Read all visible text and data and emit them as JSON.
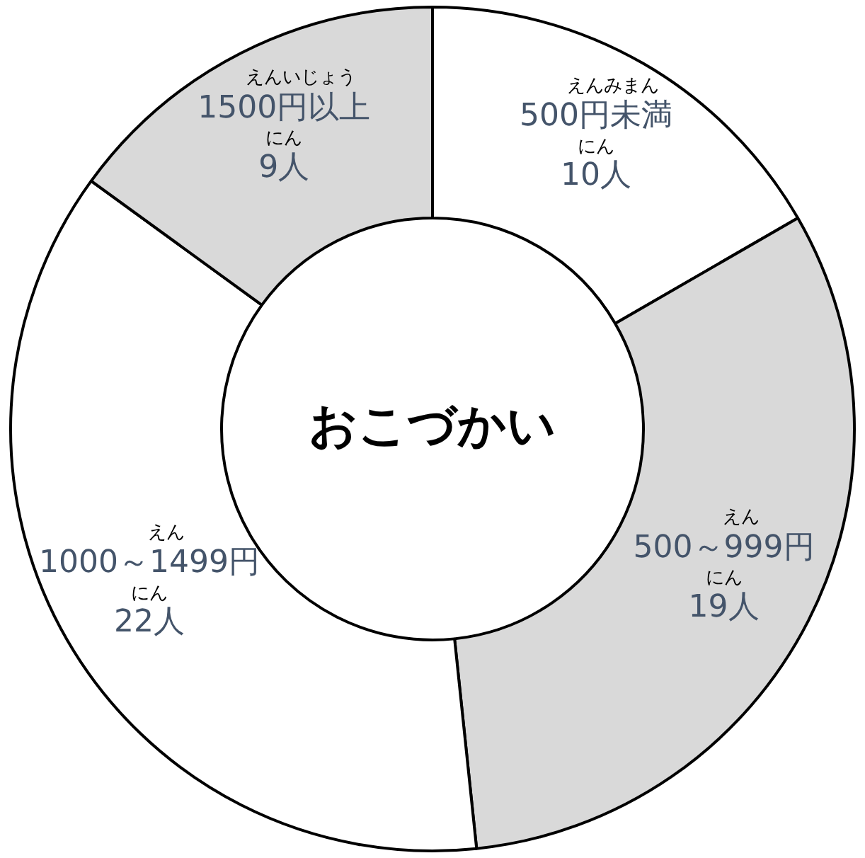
{
  "chart_data": {
    "type": "donut",
    "title": "おこづかい",
    "categories": [
      "500円未満",
      "500～999円",
      "1000～1499円",
      "1500円以上"
    ],
    "values": [
      10,
      19,
      22,
      9
    ],
    "value_labels": [
      "10人",
      "19人",
      "22人",
      "9人"
    ],
    "colors": [
      "#ffffff",
      "#d9d9d9",
      "#ffffff",
      "#d9d9d9"
    ],
    "annotations": [
      {
        "text": "えんみまん",
        "x": "500円未満"
      },
      {
        "text": "にん",
        "x": "500円未満"
      },
      {
        "text": "えん",
        "x": "500～999円"
      },
      {
        "text": "にん",
        "x": "500～999円"
      },
      {
        "text": "えん",
        "x": "1000～1499円"
      },
      {
        "text": "にん",
        "x": "1000～1499円"
      },
      {
        "text": "えんいじょう",
        "x": "1500円以上"
      },
      {
        "text": "にん",
        "x": "1500円以上"
      }
    ],
    "legend": false
  }
}
